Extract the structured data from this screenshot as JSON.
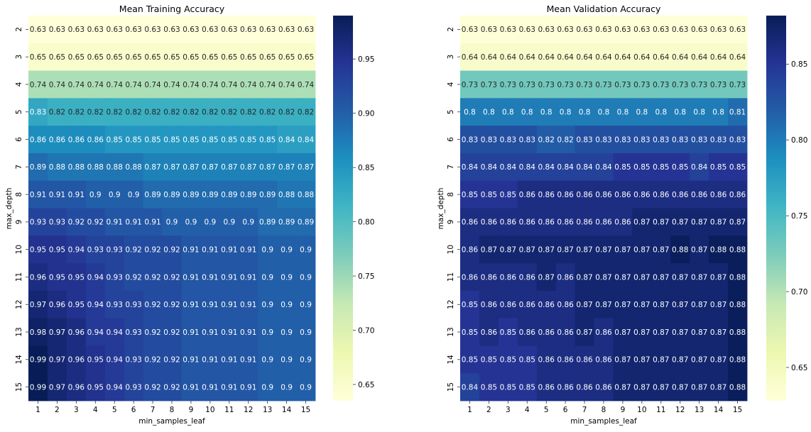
{
  "chart_data": [
    {
      "type": "heatmap",
      "title": "Mean Training Accuracy",
      "xlabel": "min_samples_leaf",
      "ylabel": "max_depth",
      "x": [
        1,
        2,
        3,
        4,
        5,
        6,
        7,
        8,
        9,
        10,
        11,
        12,
        13,
        14,
        15
      ],
      "y": [
        2,
        3,
        4,
        5,
        6,
        7,
        8,
        9,
        10,
        11,
        12,
        13,
        14,
        15
      ],
      "values": [
        [
          0.63,
          0.63,
          0.63,
          0.63,
          0.63,
          0.63,
          0.63,
          0.63,
          0.63,
          0.63,
          0.63,
          0.63,
          0.63,
          0.63,
          0.63
        ],
        [
          0.65,
          0.65,
          0.65,
          0.65,
          0.65,
          0.65,
          0.65,
          0.65,
          0.65,
          0.65,
          0.65,
          0.65,
          0.65,
          0.65,
          0.65
        ],
        [
          0.74,
          0.74,
          0.74,
          0.74,
          0.74,
          0.74,
          0.74,
          0.74,
          0.74,
          0.74,
          0.74,
          0.74,
          0.74,
          0.74,
          0.74
        ],
        [
          0.83,
          0.82,
          0.82,
          0.82,
          0.82,
          0.82,
          0.82,
          0.82,
          0.82,
          0.82,
          0.82,
          0.82,
          0.82,
          0.82,
          0.82
        ],
        [
          0.86,
          0.86,
          0.86,
          0.86,
          0.85,
          0.85,
          0.85,
          0.85,
          0.85,
          0.85,
          0.85,
          0.85,
          0.85,
          0.84,
          0.84
        ],
        [
          0.89,
          0.88,
          0.88,
          0.88,
          0.88,
          0.88,
          0.87,
          0.87,
          0.87,
          0.87,
          0.87,
          0.87,
          0.87,
          0.87,
          0.87
        ],
        [
          0.91,
          0.91,
          0.91,
          0.9,
          0.9,
          0.9,
          0.89,
          0.89,
          0.89,
          0.89,
          0.89,
          0.89,
          0.89,
          0.88,
          0.88
        ],
        [
          0.93,
          0.93,
          0.92,
          0.92,
          0.91,
          0.91,
          0.91,
          0.9,
          0.9,
          0.9,
          0.9,
          0.9,
          0.89,
          0.89,
          0.89
        ],
        [
          0.95,
          0.95,
          0.94,
          0.93,
          0.93,
          0.92,
          0.92,
          0.92,
          0.91,
          0.91,
          0.91,
          0.91,
          0.9,
          0.9,
          0.9
        ],
        [
          0.96,
          0.95,
          0.95,
          0.94,
          0.93,
          0.92,
          0.92,
          0.92,
          0.91,
          0.91,
          0.91,
          0.91,
          0.9,
          0.9,
          0.9
        ],
        [
          0.97,
          0.96,
          0.95,
          0.94,
          0.93,
          0.93,
          0.92,
          0.92,
          0.91,
          0.91,
          0.91,
          0.91,
          0.9,
          0.9,
          0.9
        ],
        [
          0.98,
          0.97,
          0.96,
          0.94,
          0.94,
          0.93,
          0.92,
          0.92,
          0.91,
          0.91,
          0.91,
          0.91,
          0.9,
          0.9,
          0.9
        ],
        [
          0.99,
          0.97,
          0.96,
          0.95,
          0.94,
          0.93,
          0.92,
          0.92,
          0.91,
          0.91,
          0.91,
          0.91,
          0.9,
          0.9,
          0.9
        ],
        [
          0.99,
          0.97,
          0.96,
          0.95,
          0.94,
          0.93,
          0.92,
          0.92,
          0.91,
          0.91,
          0.91,
          0.91,
          0.9,
          0.9,
          0.9
        ]
      ],
      "colorbar": {
        "range": [
          0.635,
          0.99
        ],
        "ticks": [
          0.65,
          0.7,
          0.75,
          0.8,
          0.85,
          0.9,
          0.95
        ],
        "tick_labels": [
          "0.65",
          "0.70",
          "0.75",
          "0.80",
          "0.85",
          "0.90",
          "0.95"
        ]
      },
      "colormap": "YlGnBu"
    },
    {
      "type": "heatmap",
      "title": "Mean Validation Accuracy",
      "xlabel": "min_samples_leaf",
      "ylabel": "max_depth",
      "x": [
        1,
        2,
        3,
        4,
        5,
        6,
        7,
        8,
        9,
        10,
        11,
        12,
        13,
        14,
        15
      ],
      "y": [
        2,
        3,
        4,
        5,
        6,
        7,
        8,
        9,
        10,
        11,
        12,
        13,
        14,
        15
      ],
      "values": [
        [
          0.63,
          0.63,
          0.63,
          0.63,
          0.63,
          0.63,
          0.63,
          0.63,
          0.63,
          0.63,
          0.63,
          0.63,
          0.63,
          0.63,
          0.63
        ],
        [
          0.64,
          0.64,
          0.64,
          0.64,
          0.64,
          0.64,
          0.64,
          0.64,
          0.64,
          0.64,
          0.64,
          0.64,
          0.64,
          0.64,
          0.64
        ],
        [
          0.73,
          0.73,
          0.73,
          0.73,
          0.73,
          0.73,
          0.73,
          0.73,
          0.73,
          0.73,
          0.73,
          0.73,
          0.73,
          0.73,
          0.73
        ],
        [
          0.8,
          0.8,
          0.8,
          0.8,
          0.8,
          0.8,
          0.8,
          0.8,
          0.8,
          0.8,
          0.8,
          0.8,
          0.8,
          0.8,
          0.81
        ],
        [
          0.83,
          0.83,
          0.83,
          0.83,
          0.82,
          0.82,
          0.83,
          0.83,
          0.83,
          0.83,
          0.83,
          0.83,
          0.83,
          0.83,
          0.83
        ],
        [
          0.84,
          0.84,
          0.84,
          0.84,
          0.84,
          0.84,
          0.84,
          0.84,
          0.85,
          0.85,
          0.85,
          0.85,
          0.84,
          0.85,
          0.85
        ],
        [
          0.85,
          0.85,
          0.85,
          0.86,
          0.86,
          0.86,
          0.86,
          0.86,
          0.86,
          0.86,
          0.86,
          0.86,
          0.86,
          0.86,
          0.86
        ],
        [
          0.86,
          0.86,
          0.86,
          0.86,
          0.86,
          0.86,
          0.86,
          0.86,
          0.86,
          0.87,
          0.87,
          0.87,
          0.87,
          0.87,
          0.87
        ],
        [
          0.86,
          0.87,
          0.87,
          0.87,
          0.87,
          0.87,
          0.87,
          0.87,
          0.87,
          0.87,
          0.87,
          0.88,
          0.87,
          0.88,
          0.88
        ],
        [
          0.86,
          0.86,
          0.86,
          0.86,
          0.87,
          0.86,
          0.87,
          0.87,
          0.87,
          0.87,
          0.87,
          0.87,
          0.87,
          0.87,
          0.88
        ],
        [
          0.85,
          0.86,
          0.86,
          0.86,
          0.86,
          0.86,
          0.87,
          0.87,
          0.87,
          0.87,
          0.87,
          0.87,
          0.87,
          0.87,
          0.88
        ],
        [
          0.85,
          0.86,
          0.85,
          0.86,
          0.86,
          0.86,
          0.87,
          0.86,
          0.87,
          0.87,
          0.87,
          0.87,
          0.87,
          0.87,
          0.88
        ],
        [
          0.85,
          0.85,
          0.85,
          0.85,
          0.86,
          0.86,
          0.86,
          0.86,
          0.87,
          0.87,
          0.87,
          0.87,
          0.87,
          0.87,
          0.88
        ],
        [
          0.84,
          0.85,
          0.85,
          0.85,
          0.86,
          0.86,
          0.86,
          0.86,
          0.87,
          0.87,
          0.87,
          0.87,
          0.87,
          0.87,
          0.88
        ]
      ],
      "colorbar": {
        "range": [
          0.628,
          0.882
        ],
        "ticks": [
          0.65,
          0.7,
          0.75,
          0.8,
          0.85
        ],
        "tick_labels": [
          "0.65",
          "0.70",
          "0.75",
          "0.80",
          "0.85"
        ]
      },
      "colormap": "YlGnBu"
    }
  ]
}
